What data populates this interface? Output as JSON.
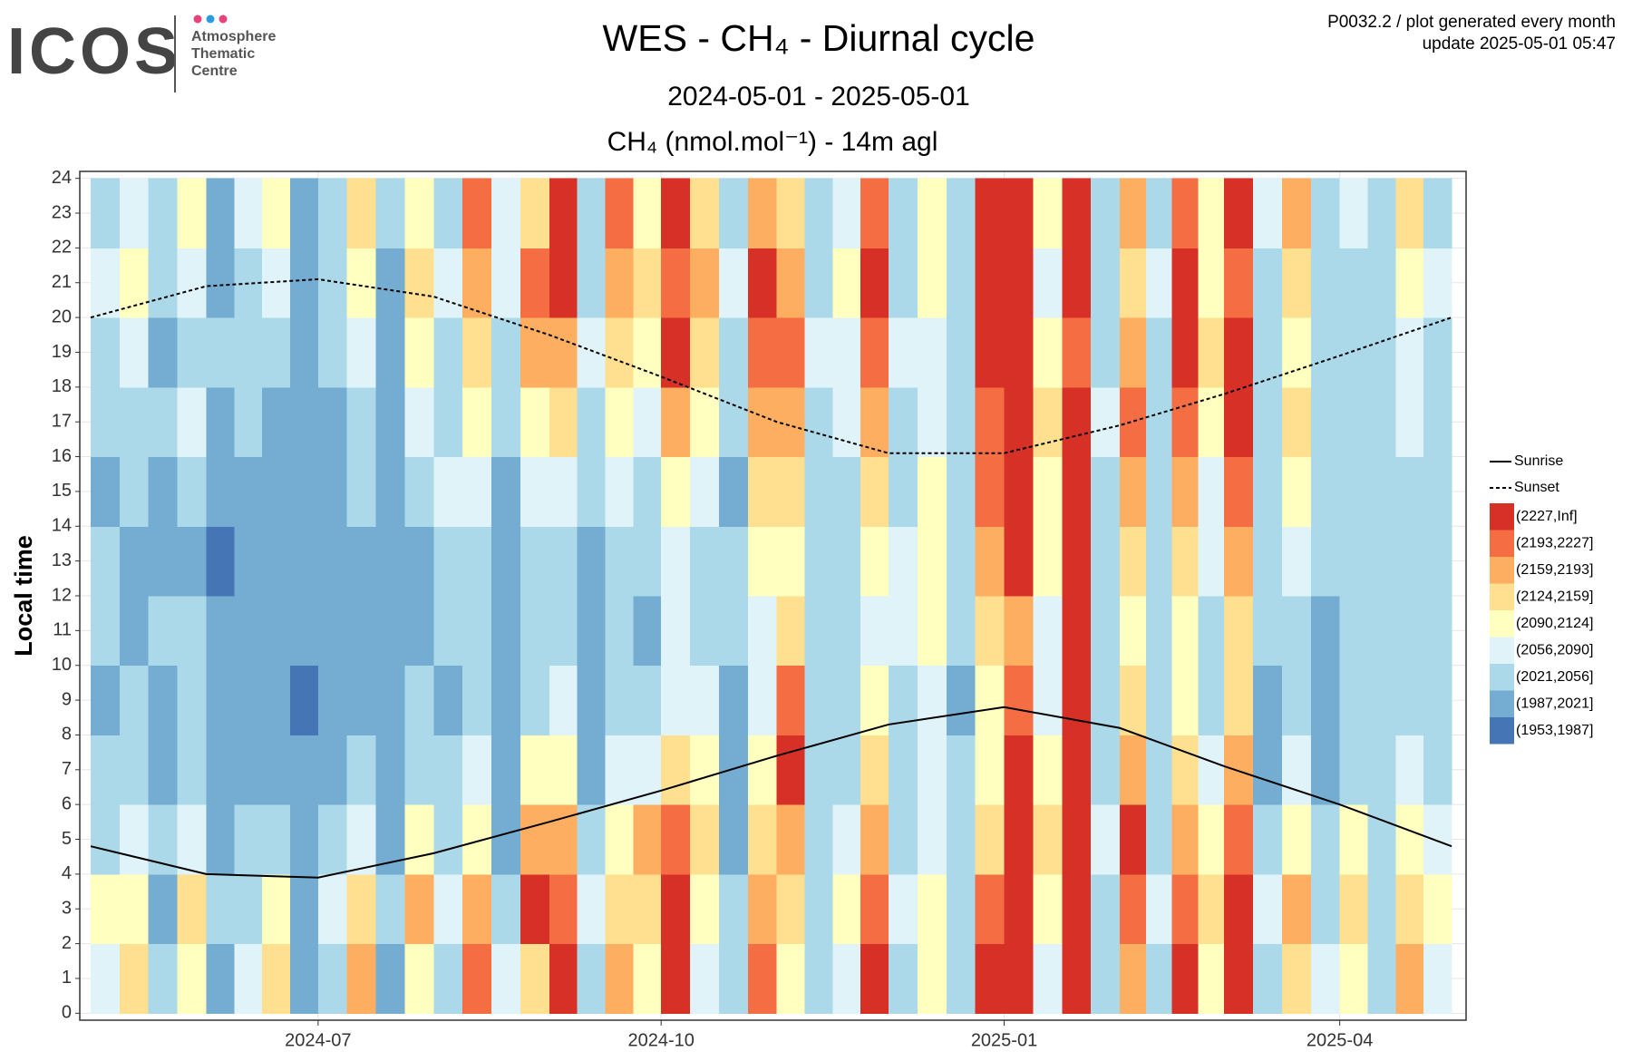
{
  "header": {
    "logo": "ICOS",
    "logo_lines": [
      "Atmosphere",
      "Thematic",
      "Centre"
    ],
    "note_lines": [
      "P0032.2 / plot generated every month",
      "update  2025-05-01 05:47"
    ]
  },
  "chart_data": {
    "type": "heatmap",
    "title": "WES - CH₄ - Diurnal cycle",
    "subtitle": "2024-05-01 - 2025-05-01",
    "value_label": "CH₄ (nmol.mol⁻¹) - 14m agl",
    "ylabel": "Local time",
    "xlim": [
      "2024-05",
      "2025-05"
    ],
    "xticks": [
      "2024-07",
      "2024-10",
      "2025-01",
      "2025-04"
    ],
    "ylim": [
      -0.2,
      24.2
    ],
    "yticks": [
      0,
      1,
      2,
      3,
      4,
      5,
      6,
      7,
      8,
      9,
      10,
      11,
      12,
      13,
      14,
      15,
      16,
      17,
      18,
      19,
      20,
      21,
      22,
      23,
      24
    ],
    "grid": true,
    "legend": "right",
    "bins": [
      {
        "label": "(2227,Inf]",
        "color": "#d73027",
        "lower": 2227
      },
      {
        "label": "(2193,2227]",
        "color": "#f46d43",
        "lower": 2193
      },
      {
        "label": "(2159,2193]",
        "color": "#fdae61",
        "lower": 2159
      },
      {
        "label": "(2124,2159]",
        "color": "#fee090",
        "lower": 2124
      },
      {
        "label": "(2090,2124]",
        "color": "#ffffbf",
        "lower": 2090
      },
      {
        "label": "(2056,2090]",
        "color": "#e0f3f8",
        "lower": 2056
      },
      {
        "label": "(2021,2056]",
        "color": "#abd9e9",
        "lower": 2021
      },
      {
        "label": "(1987,2021]",
        "color": "#74add1",
        "lower": 1987
      },
      {
        "label": "(1953,1987]",
        "color": "#4575b4",
        "lower": 1953
      }
    ],
    "x": [
      "2024-05",
      "2024-06",
      "2024-07",
      "2024-08",
      "2024-09",
      "2024-10",
      "2024-11",
      "2024-12",
      "2025-01",
      "2025-02",
      "2025-03",
      "2025-04"
    ],
    "values": [
      [
        [
          2073,
          2107,
          2038,
          2038,
          2004,
          2038,
          2038,
          2004,
          2038,
          2038,
          2073,
          2038
        ],
        [
          2141,
          2107,
          2073,
          2038,
          2038,
          2004,
          2004,
          2038,
          2038,
          2073,
          2107,
          2073
        ],
        [
          2038,
          2004,
          2038,
          2004,
          2004,
          2038,
          2004,
          2004,
          2038,
          2004,
          2038,
          2038
        ],
        [
          2107,
          2141,
          2073,
          2038,
          2038,
          2038,
          2004,
          2038,
          2073,
          2038,
          2073,
          2107
        ]
      ],
      [
        [
          2004,
          2038,
          2004,
          2004,
          2004,
          2004,
          1970,
          2004,
          2004,
          2038,
          2004,
          2004
        ],
        [
          2073,
          2038,
          2038,
          2004,
          2004,
          2004,
          2004,
          2004,
          2038,
          2038,
          2038,
          2073
        ],
        [
          2141,
          2107,
          2038,
          2004,
          2004,
          2004,
          2004,
          2004,
          2004,
          2038,
          2073,
          2107
        ],
        [
          2004,
          2004,
          2004,
          2004,
          1970,
          2004,
          2004,
          2004,
          2004,
          2004,
          2004,
          2004
        ]
      ],
      [
        [
          2038,
          2073,
          2038,
          2004,
          2004,
          2004,
          2004,
          2004,
          2004,
          2038,
          2038,
          2038
        ],
        [
          2176,
          2141,
          2073,
          2038,
          2004,
          2004,
          2004,
          2038,
          2038,
          2073,
          2107,
          2141
        ],
        [
          2004,
          2038,
          2004,
          2004,
          2004,
          2004,
          2004,
          2004,
          2004,
          2004,
          2004,
          2038
        ],
        [
          2107,
          2176,
          2107,
          2038,
          2038,
          2004,
          2004,
          2038,
          2073,
          2107,
          2141,
          2107
        ]
      ],
      [
        [
          2038,
          2073,
          2038,
          2038,
          2004,
          2038,
          2038,
          2073,
          2038,
          2038,
          2073,
          2038
        ],
        [
          2210,
          2176,
          2107,
          2073,
          2038,
          2038,
          2038,
          2073,
          2107,
          2141,
          2176,
          2210
        ],
        [
          2073,
          2038,
          2004,
          2004,
          2004,
          2004,
          2004,
          2004,
          2038,
          2038,
          2073,
          2073
        ],
        [
          2141,
          2250,
          2176,
          2107,
          2038,
          2038,
          2038,
          2073,
          2107,
          2176,
          2210,
          2141
        ]
      ],
      [
        [
          2250,
          2210,
          2176,
          2107,
          2073,
          2038,
          2038,
          2073,
          2141,
          2176,
          2250,
          2250
        ],
        [
          2038,
          2073,
          2038,
          2004,
          2004,
          2004,
          2004,
          2038,
          2038,
          2073,
          2038,
          2038
        ],
        [
          2176,
          2141,
          2107,
          2073,
          2038,
          2038,
          2038,
          2073,
          2107,
          2141,
          2176,
          2210
        ],
        [
          2107,
          2141,
          2176,
          2073,
          2038,
          2004,
          2038,
          2038,
          2073,
          2107,
          2141,
          2107
        ]
      ],
      [
        [
          2250,
          2250,
          2210,
          2141,
          2073,
          2073,
          2073,
          2107,
          2176,
          2250,
          2210,
          2250
        ],
        [
          2073,
          2107,
          2141,
          2107,
          2073,
          2038,
          2038,
          2073,
          2107,
          2141,
          2176,
          2141
        ],
        [
          2038,
          2038,
          2004,
          2004,
          2004,
          2038,
          2038,
          2004,
          2038,
          2038,
          2073,
          2038
        ],
        [
          2210,
          2176,
          2141,
          2107,
          2073,
          2073,
          2107,
          2141,
          2176,
          2210,
          2250,
          2176
        ]
      ],
      [
        [
          2107,
          2141,
          2176,
          2250,
          2210,
          2141,
          2107,
          2141,
          2176,
          2210,
          2176,
          2141
        ],
        [
          2038,
          2038,
          2038,
          2038,
          2038,
          2038,
          2038,
          2038,
          2038,
          2073,
          2038,
          2038
        ],
        [
          2073,
          2107,
          2073,
          2038,
          2038,
          2038,
          2038,
          2038,
          2073,
          2073,
          2107,
          2073
        ],
        [
          2250,
          2210,
          2176,
          2141,
          2107,
          2073,
          2107,
          2141,
          2176,
          2210,
          2250,
          2210
        ]
      ],
      [
        [
          2038,
          2073,
          2038,
          2038,
          2038,
          2073,
          2073,
          2038,
          2038,
          2073,
          2038,
          2038
        ],
        [
          2107,
          2107,
          2073,
          2073,
          2073,
          2107,
          2107,
          2107,
          2073,
          2073,
          2107,
          2107
        ],
        [
          2038,
          2038,
          2038,
          2038,
          2004,
          2038,
          2038,
          2038,
          2038,
          2038,
          2038,
          2038
        ],
        [
          2250,
          2210,
          2141,
          2107,
          2107,
          2141,
          2176,
          2210,
          2210,
          2250,
          2250,
          2250
        ]
      ],
      [
        [
          2250,
          2250,
          2250,
          2250,
          2210,
          2176,
          2250,
          2250,
          2250,
          2250,
          2250,
          2250
        ],
        [
          2073,
          2107,
          2141,
          2107,
          2073,
          2073,
          2107,
          2107,
          2141,
          2107,
          2073,
          2107
        ],
        [
          2250,
          2250,
          2250,
          2250,
          2250,
          2250,
          2250,
          2250,
          2250,
          2210,
          2250,
          2250
        ],
        [
          2038,
          2038,
          2073,
          2038,
          2038,
          2038,
          2038,
          2038,
          2073,
          2038,
          2038,
          2038
        ]
      ],
      [
        [
          2176,
          2210,
          2250,
          2176,
          2141,
          2107,
          2141,
          2176,
          2210,
          2176,
          2141,
          2176
        ],
        [
          2038,
          2073,
          2038,
          2038,
          2038,
          2038,
          2038,
          2038,
          2038,
          2038,
          2073,
          2038
        ],
        [
          2250,
          2210,
          2176,
          2141,
          2107,
          2107,
          2141,
          2176,
          2210,
          2250,
          2250,
          2210
        ],
        [
          2107,
          2141,
          2107,
          2073,
          2038,
          2038,
          2073,
          2073,
          2107,
          2141,
          2107,
          2107
        ]
      ],
      [
        [
          2250,
          2250,
          2210,
          2176,
          2141,
          2141,
          2176,
          2210,
          2250,
          2250,
          2210,
          2250
        ],
        [
          2038,
          2073,
          2038,
          2004,
          2004,
          2038,
          2038,
          2038,
          2038,
          2038,
          2038,
          2073
        ],
        [
          2141,
          2176,
          2107,
          2073,
          2038,
          2038,
          2073,
          2107,
          2141,
          2107,
          2141,
          2176
        ],
        [
          2073,
          2038,
          2038,
          2004,
          2004,
          2004,
          2038,
          2038,
          2038,
          2038,
          2038,
          2038
        ]
      ],
      [
        [
          2107,
          2141,
          2107,
          2038,
          2038,
          2038,
          2038,
          2038,
          2038,
          2038,
          2038,
          2073
        ],
        [
          2038,
          2038,
          2038,
          2038,
          2038,
          2038,
          2038,
          2038,
          2038,
          2038,
          2038,
          2038
        ],
        [
          2176,
          2141,
          2107,
          2073,
          2038,
          2038,
          2038,
          2038,
          2073,
          2073,
          2107,
          2141
        ],
        [
          2073,
          2107,
          2073,
          2038,
          2038,
          2038,
          2038,
          2038,
          2038,
          2038,
          2073,
          2038
        ]
      ]
    ],
    "lines": [
      {
        "name": "Sunrise",
        "color": "#000000",
        "dashed": false,
        "x": [
          "2024-05",
          "2024-06",
          "2024-07",
          "2024-08",
          "2024-09",
          "2024-10",
          "2024-11",
          "2024-12",
          "2025-01",
          "2025-02",
          "2025-03",
          "2025-04",
          "2025-05"
        ],
        "values": [
          4.8,
          4.0,
          3.9,
          4.6,
          5.5,
          6.4,
          7.4,
          8.3,
          8.8,
          8.2,
          7.1,
          6.0,
          4.8
        ]
      },
      {
        "name": "Sunset",
        "color": "#000000",
        "dashed": true,
        "x": [
          "2024-05",
          "2024-06",
          "2024-07",
          "2024-08",
          "2024-09",
          "2024-10",
          "2024-11",
          "2024-12",
          "2025-01",
          "2025-02",
          "2025-03",
          "2025-04",
          "2025-05"
        ],
        "values": [
          20.0,
          20.9,
          21.1,
          20.6,
          19.5,
          18.3,
          17.0,
          16.1,
          16.1,
          16.9,
          17.8,
          18.9,
          20.0
        ]
      }
    ]
  }
}
